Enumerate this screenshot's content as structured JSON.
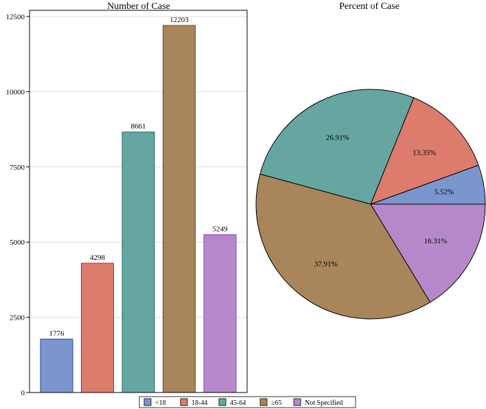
{
  "chart_data": [
    {
      "type": "bar",
      "title": "Number of Case",
      "categories": [
        "<18",
        "18-44",
        "45-64",
        "≥65",
        "Not Specified"
      ],
      "values": [
        1776,
        4298,
        8661,
        12203,
        5249
      ],
      "data_labels": [
        "1776",
        "4298",
        "8661",
        "12203",
        "5249"
      ],
      "yticks": [
        0,
        2500,
        5000,
        7500,
        10000,
        12500
      ],
      "ytick_labels": [
        "0",
        "2500",
        "5000",
        "7500",
        "10000",
        "12500"
      ],
      "ylim": [
        0,
        12500
      ],
      "xlabel": "",
      "ylabel": "",
      "grid": true
    },
    {
      "type": "pie",
      "title": "Percent of Case",
      "categories": [
        "<18",
        "18-44",
        "45-64",
        "≥65",
        "Not Specified"
      ],
      "values": [
        5.52,
        13.35,
        26.91,
        37.91,
        16.31
      ],
      "data_labels": [
        "5.52%",
        "13.35%",
        "26.91%",
        "37.91%",
        "16.31%"
      ]
    }
  ],
  "legend": {
    "placement": "bottom",
    "items": [
      "<18",
      "18-44",
      "45-64",
      "≥65",
      "Not Specified"
    ]
  },
  "colors": {
    "fills": [
      "#7b96cd",
      "#dd7b6c",
      "#66a6a1",
      "#a8855a",
      "#b589c9"
    ],
    "strokes": [
      "#2d3fa8",
      "#b0302a",
      "#1e6e66",
      "#6b4a24",
      "#8a3fc0"
    ]
  }
}
